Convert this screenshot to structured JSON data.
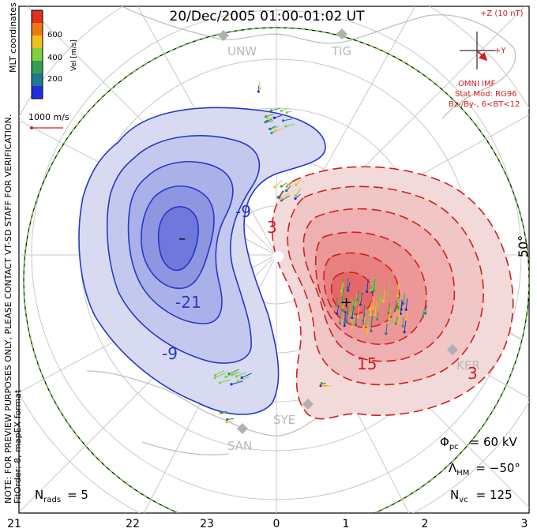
{
  "title": "20/Dec/2005 01:00-01:02 UT",
  "side_note_1": "NOTE: FOR PREVIEW PURPOSES ONLY, PLEASE CONTACT VT-SD STAFF FOR VERIFICATION.",
  "side_note_2": "FitOrder: 8, mapEX format",
  "colorbar": {
    "title": "MLT coordinates",
    "unit_label": "Vel [m/s]",
    "ticks": [
      "600",
      "400",
      "200"
    ],
    "colors": [
      "#e03020",
      "#f07810",
      "#f0c020",
      "#80d040",
      "#30a050",
      "#207890",
      "#2030e0"
    ]
  },
  "reference_vector": {
    "label": "1000 m/s",
    "color": "#d02020"
  },
  "imf": {
    "z_label": "+Z (10 nT)",
    "y_label": "+Y",
    "source": "OMNI IMF",
    "stat_mod": "Stat Mod: RG96",
    "condition": "Bz-/By-, 6<BT<12",
    "color": "#d02020"
  },
  "stations": [
    "UNW",
    "TIG",
    "KER",
    "SYE",
    "SAN"
  ],
  "latitude_label": "50°",
  "contour_labels": {
    "negative": [
      "-9",
      "-21",
      "-9"
    ],
    "positive": [
      "3",
      "15",
      "3"
    ],
    "min_marker": "–",
    "max_marker": "+"
  },
  "stats": {
    "phi_label": "Φ",
    "phi_sub": "pc",
    "phi_value": "= 60 kV",
    "lambda_label": "Λ",
    "lambda_sub": "HM",
    "lambda_value": "= −50°",
    "nvc_label": "N",
    "nvc_sub": "vc",
    "nvc_value": "= 125",
    "nrads_label": "N",
    "nrads_sub": "rads",
    "nrads_value": "= 5"
  },
  "mlt_axis": {
    "ticks": [
      "21",
      "22",
      "23",
      "0",
      "1",
      "2",
      "3"
    ]
  },
  "colors": {
    "negative_cell": "#2838c8",
    "positive_cell": "#d02020",
    "boundary": "#70c040",
    "grid": "#c8c8c8",
    "land": "#c0c0c0"
  }
}
